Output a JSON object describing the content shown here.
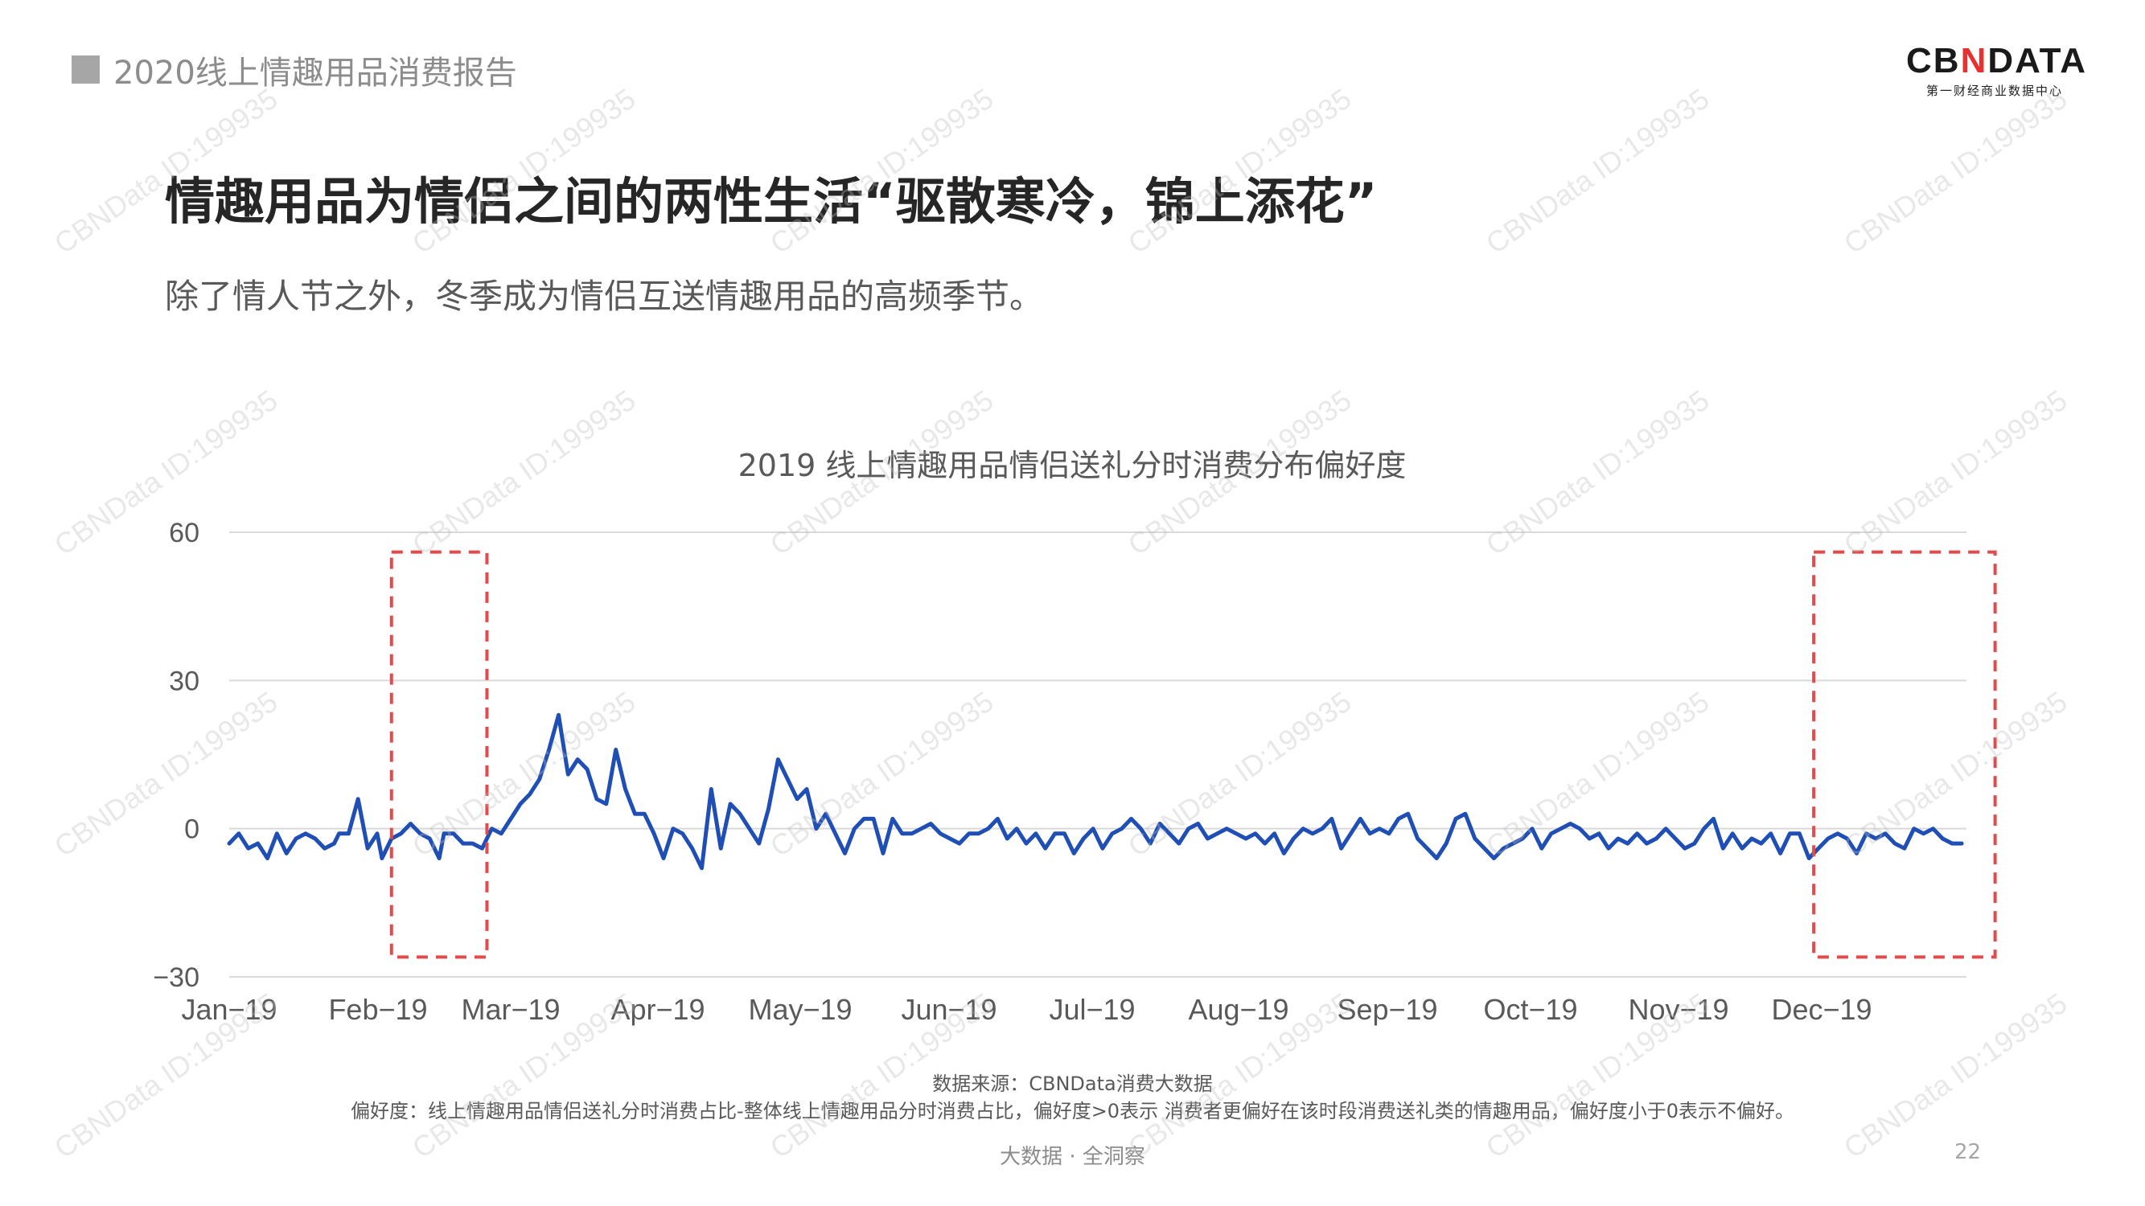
{
  "header": {
    "report_title": "2020线上情趣用品消费报告",
    "logo_text_left": "CB",
    "logo_text_x": "N",
    "logo_text_right": "DATA",
    "logo_subtitle": "第一财经商业数据中心"
  },
  "headline": "情趣用品为情侣之间的两性生活“驱散寒冷，锦上添花”",
  "subheadline": "除了情人节之外，冬季成为情侣互送情趣用品的高频季节。",
  "chart_data": {
    "type": "line",
    "title": "2019 线上情趣用品情侣送礼分时消费分布偏好度",
    "xlabel": "",
    "ylabel": "",
    "ylim": [
      -30,
      60
    ],
    "yticks": [
      -30,
      0,
      30,
      60
    ],
    "grid": true,
    "line_color": "#1f4fb5",
    "highlight_color": "#e24b4b",
    "x_start": "2019-01-01",
    "x_end": "2019-12-31",
    "month_ticks": [
      "Jan-19",
      "Feb-19",
      "Mar-19",
      "Apr-19",
      "May-19",
      "Jun-19",
      "Jul-19",
      "Aug-19",
      "Sep-19",
      "Oct-19",
      "Nov-19",
      "Dec-19"
    ],
    "highlight_ranges": [
      {
        "from": "2019-02-04",
        "to": "2019-02-24",
        "ymin": -26,
        "ymax": 56
      },
      {
        "from": "2019-11-29",
        "to": "2020-01-06",
        "ymin": -26,
        "ymax": 56
      }
    ],
    "series": [
      {
        "points": [
          [
            "2019-01-01",
            -3
          ],
          [
            "2019-01-03",
            -1
          ],
          [
            "2019-01-05",
            -4
          ],
          [
            "2019-01-07",
            -3
          ],
          [
            "2019-01-09",
            -6
          ],
          [
            "2019-01-11",
            -1
          ],
          [
            "2019-01-13",
            -5
          ],
          [
            "2019-01-15",
            -2
          ],
          [
            "2019-01-17",
            -1
          ],
          [
            "2019-01-19",
            -2
          ],
          [
            "2019-01-21",
            -4
          ],
          [
            "2019-01-23",
            -3
          ],
          [
            "2019-01-24",
            -1
          ],
          [
            "2019-01-26",
            -1
          ],
          [
            "2019-01-28",
            6
          ],
          [
            "2019-01-30",
            -4
          ],
          [
            "2019-02-01",
            -1
          ],
          [
            "2019-02-02",
            -6
          ],
          [
            "2019-02-04",
            -2
          ],
          [
            "2019-02-06",
            -1
          ],
          [
            "2019-02-08",
            1
          ],
          [
            "2019-02-10",
            -1
          ],
          [
            "2019-02-12",
            -2
          ],
          [
            "2019-02-14",
            -6
          ],
          [
            "2019-02-15",
            -1
          ],
          [
            "2019-02-17",
            -1
          ],
          [
            "2019-02-19",
            -3
          ],
          [
            "2019-02-21",
            -3
          ],
          [
            "2019-02-23",
            -4
          ],
          [
            "2019-02-25",
            0
          ],
          [
            "2019-02-27",
            -1
          ],
          [
            "2019-03-01",
            2
          ],
          [
            "2019-03-03",
            5
          ],
          [
            "2019-03-05",
            7
          ],
          [
            "2019-03-07",
            10
          ],
          [
            "2019-03-09",
            16
          ],
          [
            "2019-03-11",
            23
          ],
          [
            "2019-03-13",
            11
          ],
          [
            "2019-03-15",
            14
          ],
          [
            "2019-03-17",
            12
          ],
          [
            "2019-03-19",
            6
          ],
          [
            "2019-03-21",
            5
          ],
          [
            "2019-03-23",
            16
          ],
          [
            "2019-03-25",
            8
          ],
          [
            "2019-03-27",
            3
          ],
          [
            "2019-03-29",
            3
          ],
          [
            "2019-03-31",
            -1
          ],
          [
            "2019-04-02",
            -6
          ],
          [
            "2019-04-04",
            0
          ],
          [
            "2019-04-06",
            -1
          ],
          [
            "2019-04-08",
            -4
          ],
          [
            "2019-04-10",
            -8
          ],
          [
            "2019-04-12",
            8
          ],
          [
            "2019-04-14",
            -4
          ],
          [
            "2019-04-16",
            5
          ],
          [
            "2019-04-18",
            3
          ],
          [
            "2019-04-20",
            0
          ],
          [
            "2019-04-22",
            -3
          ],
          [
            "2019-04-24",
            4
          ],
          [
            "2019-04-26",
            14
          ],
          [
            "2019-04-28",
            10
          ],
          [
            "2019-04-30",
            6
          ],
          [
            "2019-05-02",
            8
          ],
          [
            "2019-05-04",
            0
          ],
          [
            "2019-05-06",
            3
          ],
          [
            "2019-05-08",
            -1
          ],
          [
            "2019-05-10",
            -5
          ],
          [
            "2019-05-12",
            0
          ],
          [
            "2019-05-14",
            2
          ],
          [
            "2019-05-16",
            2
          ],
          [
            "2019-05-18",
            -5
          ],
          [
            "2019-05-20",
            2
          ],
          [
            "2019-05-22",
            -1
          ],
          [
            "2019-05-24",
            -1
          ],
          [
            "2019-05-26",
            0
          ],
          [
            "2019-05-28",
            1
          ],
          [
            "2019-05-30",
            -1
          ],
          [
            "2019-06-01",
            -2
          ],
          [
            "2019-06-03",
            -3
          ],
          [
            "2019-06-05",
            -1
          ],
          [
            "2019-06-07",
            -1
          ],
          [
            "2019-06-09",
            0
          ],
          [
            "2019-06-11",
            2
          ],
          [
            "2019-06-13",
            -2
          ],
          [
            "2019-06-15",
            0
          ],
          [
            "2019-06-17",
            -3
          ],
          [
            "2019-06-19",
            -1
          ],
          [
            "2019-06-21",
            -4
          ],
          [
            "2019-06-23",
            -1
          ],
          [
            "2019-06-25",
            -1
          ],
          [
            "2019-06-27",
            -5
          ],
          [
            "2019-06-29",
            -2
          ],
          [
            "2019-07-01",
            0
          ],
          [
            "2019-07-03",
            -4
          ],
          [
            "2019-07-05",
            -1
          ],
          [
            "2019-07-07",
            0
          ],
          [
            "2019-07-09",
            2
          ],
          [
            "2019-07-11",
            0
          ],
          [
            "2019-07-13",
            -3
          ],
          [
            "2019-07-15",
            1
          ],
          [
            "2019-07-17",
            -1
          ],
          [
            "2019-07-19",
            -3
          ],
          [
            "2019-07-21",
            0
          ],
          [
            "2019-07-23",
            1
          ],
          [
            "2019-07-25",
            -2
          ],
          [
            "2019-07-27",
            -1
          ],
          [
            "2019-07-29",
            0
          ],
          [
            "2019-07-31",
            -1
          ],
          [
            "2019-08-02",
            -2
          ],
          [
            "2019-08-04",
            -1
          ],
          [
            "2019-08-06",
            -3
          ],
          [
            "2019-08-08",
            -1
          ],
          [
            "2019-08-10",
            -5
          ],
          [
            "2019-08-12",
            -2
          ],
          [
            "2019-08-14",
            0
          ],
          [
            "2019-08-16",
            -1
          ],
          [
            "2019-08-18",
            0
          ],
          [
            "2019-08-20",
            2
          ],
          [
            "2019-08-22",
            -4
          ],
          [
            "2019-08-24",
            -1
          ],
          [
            "2019-08-26",
            2
          ],
          [
            "2019-08-28",
            -1
          ],
          [
            "2019-08-30",
            0
          ],
          [
            "2019-09-01",
            -1
          ],
          [
            "2019-09-03",
            2
          ],
          [
            "2019-09-05",
            3
          ],
          [
            "2019-09-07",
            -2
          ],
          [
            "2019-09-09",
            -4
          ],
          [
            "2019-09-11",
            -6
          ],
          [
            "2019-09-13",
            -3
          ],
          [
            "2019-09-15",
            2
          ],
          [
            "2019-09-17",
            3
          ],
          [
            "2019-09-19",
            -2
          ],
          [
            "2019-09-21",
            -4
          ],
          [
            "2019-09-23",
            -6
          ],
          [
            "2019-09-25",
            -4
          ],
          [
            "2019-09-27",
            -3
          ],
          [
            "2019-09-29",
            -2
          ],
          [
            "2019-10-01",
            0
          ],
          [
            "2019-10-03",
            -4
          ],
          [
            "2019-10-05",
            -1
          ],
          [
            "2019-10-07",
            0
          ],
          [
            "2019-10-09",
            1
          ],
          [
            "2019-10-11",
            0
          ],
          [
            "2019-10-13",
            -2
          ],
          [
            "2019-10-15",
            -1
          ],
          [
            "2019-10-17",
            -4
          ],
          [
            "2019-10-19",
            -2
          ],
          [
            "2019-10-21",
            -3
          ],
          [
            "2019-10-23",
            -1
          ],
          [
            "2019-10-25",
            -3
          ],
          [
            "2019-10-27",
            -2
          ],
          [
            "2019-10-29",
            0
          ],
          [
            "2019-10-31",
            -2
          ],
          [
            "2019-11-02",
            -4
          ],
          [
            "2019-11-04",
            -3
          ],
          [
            "2019-11-06",
            0
          ],
          [
            "2019-11-08",
            2
          ],
          [
            "2019-11-10",
            -4
          ],
          [
            "2019-11-12",
            -1
          ],
          [
            "2019-11-14",
            -4
          ],
          [
            "2019-11-16",
            -2
          ],
          [
            "2019-11-18",
            -3
          ],
          [
            "2019-11-20",
            -1
          ],
          [
            "2019-11-22",
            -5
          ],
          [
            "2019-11-24",
            -1
          ],
          [
            "2019-11-26",
            -1
          ],
          [
            "2019-11-28",
            -6
          ],
          [
            "2019-11-30",
            -4
          ],
          [
            "2019-12-02",
            -2
          ],
          [
            "2019-12-04",
            -1
          ],
          [
            "2019-12-06",
            -2
          ],
          [
            "2019-12-08",
            -5
          ],
          [
            "2019-12-10",
            -1
          ],
          [
            "2019-12-12",
            -2
          ],
          [
            "2019-12-14",
            -1
          ],
          [
            "2019-12-16",
            -3
          ],
          [
            "2019-12-18",
            -4
          ],
          [
            "2019-12-20",
            0
          ],
          [
            "2019-12-22",
            -1
          ],
          [
            "2019-12-24",
            0
          ],
          [
            "2019-12-26",
            -2
          ],
          [
            "2019-12-28",
            -3
          ],
          [
            "2019-12-30",
            -3
          ]
        ]
      }
    ]
  },
  "footer": {
    "source": "数据来源：CBNData消费大数据",
    "definition": "偏好度：线上情趣用品情侣送礼分时消费占比-整体线上情趣用品分时消费占比，偏好度>0表示 消费者更偏好在该时段消费送礼类的情趣用品，偏好度小于0表示不偏好。",
    "tagline": "大数据 · 全洞察",
    "page_number": "22"
  },
  "watermark_text": "CBNData ID:199935"
}
